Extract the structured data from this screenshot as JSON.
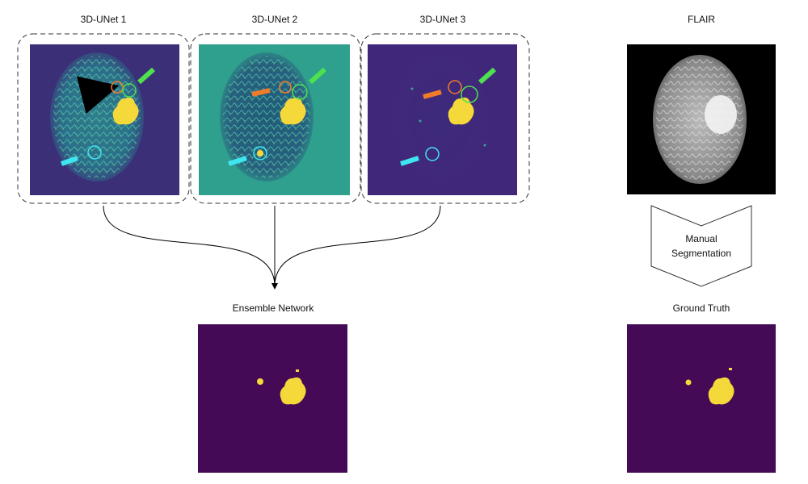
{
  "panels": [
    {
      "title": "3D-UNet 1"
    },
    {
      "title": "3D-UNet 2"
    },
    {
      "title": "3D-UNet 3"
    }
  ],
  "flair": {
    "title": "FLAIR"
  },
  "manual_step": {
    "label_lines": [
      "Manual",
      "Segmentation"
    ]
  },
  "ensemble": {
    "title": "Ensemble Network"
  },
  "ground_truth": {
    "title": "Ground Truth"
  }
}
